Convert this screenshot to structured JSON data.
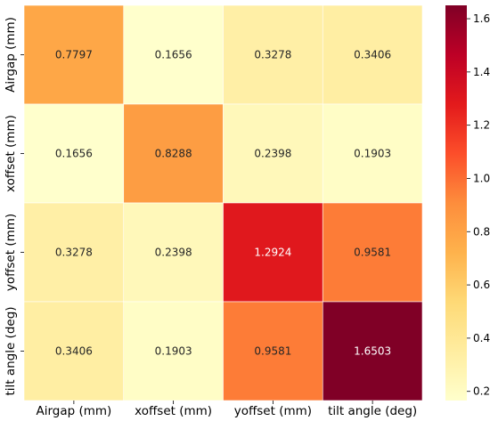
{
  "chart_data": {
    "type": "heatmap",
    "title": "",
    "xlabel": "",
    "ylabel": "",
    "x_labels": [
      "Airgap (mm)",
      "xoffset (mm)",
      "yoffset (mm)",
      "tilt angle (deg)"
    ],
    "y_labels": [
      "Airgap (mm)",
      "xoffset (mm)",
      "yoffset (mm)",
      "tilt angle (deg)"
    ],
    "values": [
      [
        0.7797,
        0.1656,
        0.3278,
        0.3406
      ],
      [
        0.1656,
        0.8288,
        0.2398,
        0.1903
      ],
      [
        0.3278,
        0.2398,
        1.2924,
        0.9581
      ],
      [
        0.3406,
        0.1903,
        0.9581,
        1.6503
      ]
    ],
    "cell_labels": [
      [
        "0.7797",
        "0.1656",
        "0.3278",
        "0.3406"
      ],
      [
        "0.1656",
        "0.8288",
        "0.2398",
        "0.1903"
      ],
      [
        "0.3278",
        "0.2398",
        "1.2924",
        "0.9581"
      ],
      [
        "0.3406",
        "0.1903",
        "0.9581",
        "1.6503"
      ]
    ],
    "colorbar": {
      "colormap": "YlOrRd",
      "range": [
        0.1656,
        1.6503
      ],
      "ticks": [
        "0.2",
        "0.4",
        "0.6",
        "0.8",
        "1.0",
        "1.2",
        "1.4",
        "1.6"
      ],
      "tick_values": [
        0.2,
        0.4,
        0.6,
        0.8,
        1.0,
        1.2,
        1.4,
        1.6
      ],
      "placement": "right"
    },
    "grid": false,
    "cell_borders": "white"
  }
}
